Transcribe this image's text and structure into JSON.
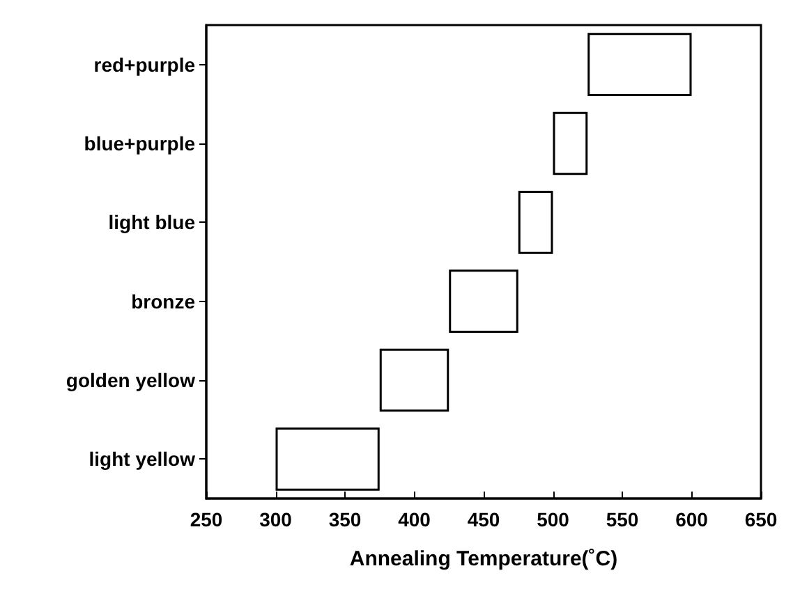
{
  "chart_data": {
    "type": "bar",
    "orientation": "horizontal",
    "xlabel": "Annealing Temperature(˚C)",
    "categories": [
      "red+purple",
      "blue+purple",
      "light blue",
      "bronze",
      "golden yellow",
      "light yellow"
    ],
    "base": [
      525,
      500,
      475,
      425,
      375,
      300
    ],
    "values": [
      75,
      25,
      25,
      50,
      50,
      75
    ],
    "color": "#ffffff",
    "xlim": [
      250,
      650
    ],
    "xticks": [
      250,
      300,
      350,
      400,
      450,
      500,
      550,
      600,
      650
    ],
    "grid": false
  }
}
